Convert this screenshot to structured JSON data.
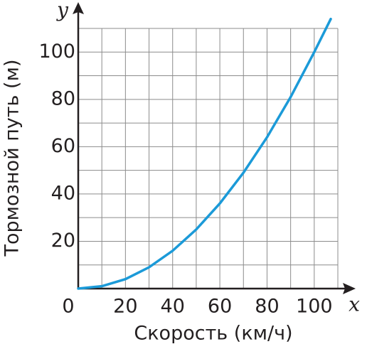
{
  "chart_data": {
    "type": "line",
    "x_label": "Скорость (км/ч)",
    "y_label": "Тормозной путь (м)",
    "x_axis_name": "x",
    "y_axis_name": "y",
    "series": [
      {
        "color": "#1b9ad8",
        "x": [
          0,
          10,
          20,
          30,
          40,
          50,
          60,
          70,
          80,
          90,
          100,
          107
        ],
        "values": [
          0,
          1,
          4,
          9,
          16,
          25,
          36,
          49,
          64,
          81,
          100,
          114
        ]
      }
    ],
    "xlim": [
      0,
      110
    ],
    "ylim": [
      0,
      110
    ],
    "xticks": [
      0,
      20,
      40,
      60,
      80,
      100
    ],
    "yticks": [
      20,
      40,
      60,
      80,
      100
    ],
    "xgrid": [
      10,
      20,
      30,
      40,
      50,
      60,
      70,
      80,
      90,
      100,
      110
    ],
    "ygrid": [
      10,
      20,
      30,
      40,
      50,
      60,
      70,
      80,
      90,
      100,
      110
    ],
    "grid": true
  }
}
